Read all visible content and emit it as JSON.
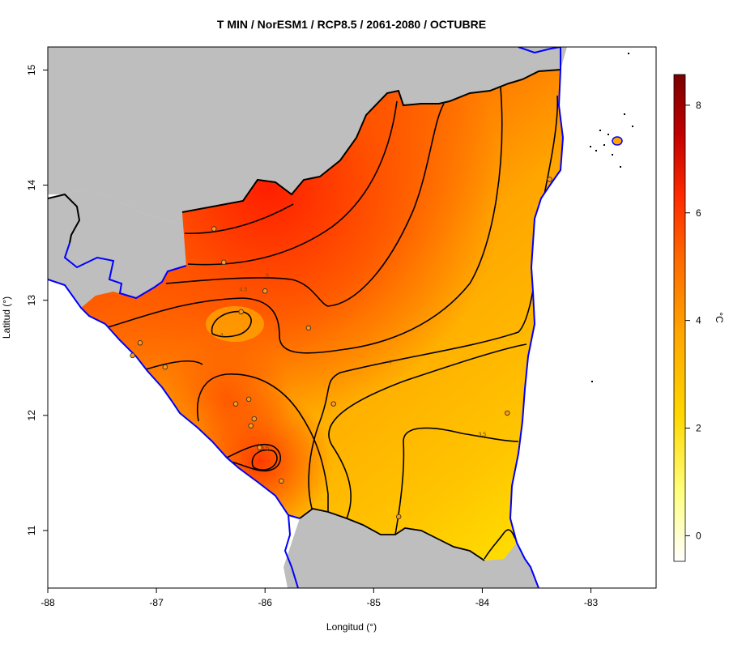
{
  "title": "T MIN / NorESM1 / RCP8.5 / 2061-2080 / OCTUBRE",
  "x_axis": {
    "label": "Longitud (°)",
    "ticks": [
      {
        "value": -88,
        "label": "-88"
      },
      {
        "value": -87,
        "label": "-87"
      },
      {
        "value": -86,
        "label": "-86"
      },
      {
        "value": -85,
        "label": "-85"
      },
      {
        "value": -84,
        "label": "-84"
      },
      {
        "value": -83,
        "label": "-83"
      }
    ]
  },
  "y_axis": {
    "label": "Latitud (°)",
    "ticks": [
      {
        "value": 11,
        "label": "11"
      },
      {
        "value": 12,
        "label": "12"
      },
      {
        "value": 13,
        "label": "13"
      },
      {
        "value": 14,
        "label": "14"
      },
      {
        "value": 15,
        "label": "15"
      }
    ]
  },
  "colorbar": {
    "unit": "°C",
    "ticks": [
      {
        "value": 0,
        "label": "0"
      },
      {
        "value": 2,
        "label": "2"
      },
      {
        "value": 4,
        "label": "4"
      },
      {
        "value": 6,
        "label": "6"
      },
      {
        "value": 8,
        "label": "8"
      }
    ],
    "stops": [
      "#ffffff",
      "#ffff80",
      "#ffd700",
      "#ffa500",
      "#ff6a00",
      "#ff2a00",
      "#c00000",
      "#7a0000"
    ]
  },
  "colors": {
    "land_gray": "#bebebe",
    "water_line": "#0000ff",
    "border": "#000000"
  },
  "contour_labels": [
    {
      "text": "5",
      "lon": -85.98,
      "lat": 13.2
    },
    {
      "text": "4.5",
      "lon": -86.2,
      "lat": 13.08
    },
    {
      "text": "4",
      "lon": -86.4,
      "lat": 12.68
    },
    {
      "text": "4",
      "lon": -84.85,
      "lat": 12.45
    },
    {
      "text": "3.5",
      "lon": -84.0,
      "lat": 11.82
    },
    {
      "text": "5.5",
      "lon": -86.0,
      "lat": 11.7
    }
  ],
  "stations": [
    {
      "lon": -86.47,
      "lat": 13.62
    },
    {
      "lon": -86.38,
      "lat": 13.33
    },
    {
      "lon": -86.0,
      "lat": 13.08
    },
    {
      "lon": -86.22,
      "lat": 12.9
    },
    {
      "lon": -85.6,
      "lat": 12.76
    },
    {
      "lon": -87.15,
      "lat": 12.63
    },
    {
      "lon": -87.22,
      "lat": 12.52
    },
    {
      "lon": -86.92,
      "lat": 12.42
    },
    {
      "lon": -86.27,
      "lat": 12.1
    },
    {
      "lon": -86.15,
      "lat": 12.14
    },
    {
      "lon": -86.1,
      "lat": 11.97
    },
    {
      "lon": -86.13,
      "lat": 11.91
    },
    {
      "lon": -86.05,
      "lat": 11.72
    },
    {
      "lon": -85.85,
      "lat": 11.43
    },
    {
      "lon": -85.37,
      "lat": 12.1
    },
    {
      "lon": -84.77,
      "lat": 11.12
    },
    {
      "lon": -83.77,
      "lat": 12.02
    },
    {
      "lon": -83.38,
      "lat": 14.05
    }
  ]
}
